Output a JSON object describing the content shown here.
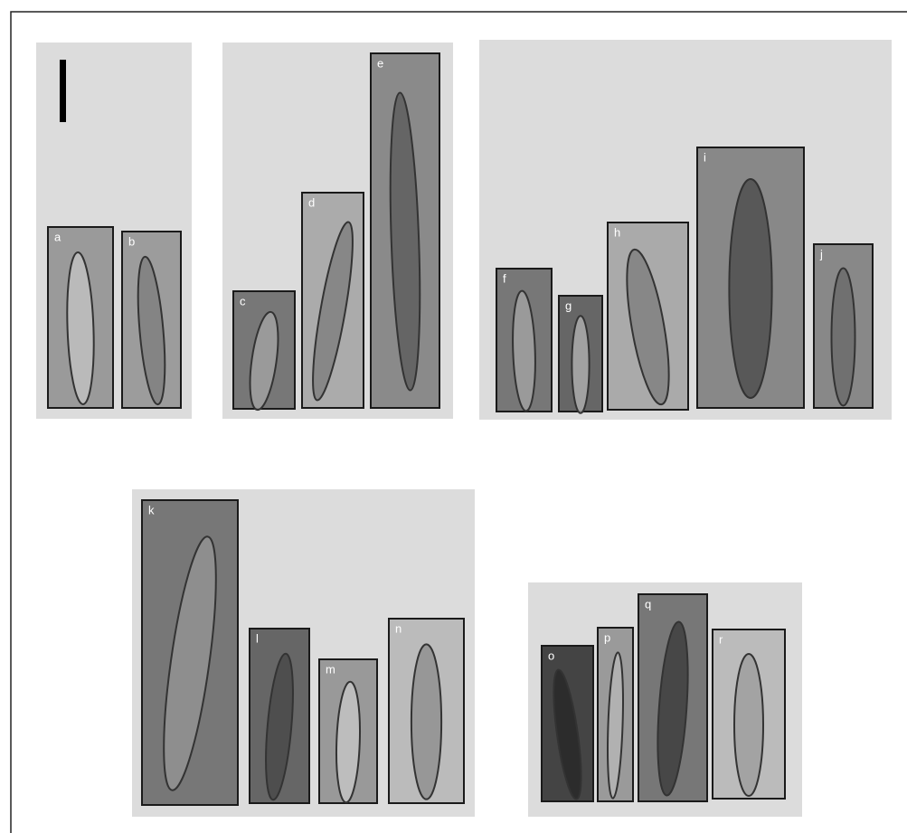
{
  "panels": [
    "a",
    "b",
    "c",
    "d",
    "e",
    "f",
    "g",
    "h",
    "i",
    "j",
    "k",
    "l",
    "m",
    "n",
    "o",
    "p",
    "q",
    "r"
  ]
}
